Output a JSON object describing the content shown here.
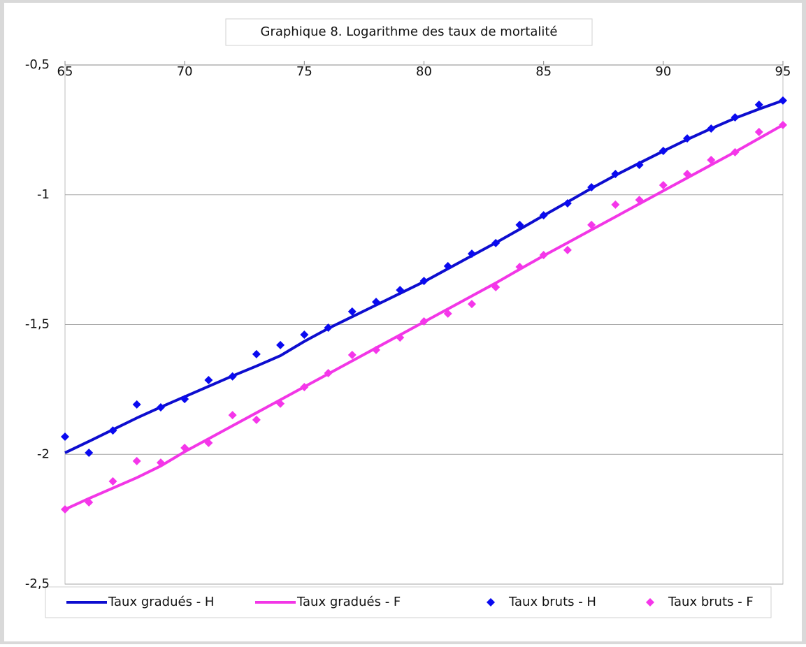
{
  "chart_data": {
    "type": "line",
    "title": "Graphique 8. Logarithme des taux de mortalité",
    "x": [
      65,
      66,
      67,
      68,
      69,
      70,
      71,
      72,
      73,
      74,
      75,
      76,
      77,
      78,
      79,
      80,
      81,
      82,
      83,
      84,
      85,
      86,
      87,
      88,
      89,
      90,
      91,
      92,
      93,
      94,
      95
    ],
    "xlim": [
      65,
      95
    ],
    "xticks": [
      65,
      70,
      75,
      80,
      85,
      90,
      95
    ],
    "ylim": [
      -2.5,
      -0.5
    ],
    "yticks": [
      {
        "value": -0.5,
        "label": "-0,5"
      },
      -1,
      {
        "value": -1.5,
        "label": "-1,5"
      },
      -2,
      {
        "value": -2.5,
        "label": "-2,5"
      }
    ],
    "grid": true,
    "legend": "bottom",
    "series": [
      {
        "name": "Taux gradués - H",
        "type": "line",
        "color": "#0d0dcf",
        "values": [
          -1.994,
          -1.95,
          -1.905,
          -1.86,
          -1.818,
          -1.778,
          -1.738,
          -1.698,
          -1.66,
          -1.62,
          -1.565,
          -1.515,
          -1.47,
          -1.425,
          -1.38,
          -1.335,
          -1.285,
          -1.235,
          -1.185,
          -1.133,
          -1.08,
          -1.028,
          -0.975,
          -0.925,
          -0.878,
          -0.832,
          -0.787,
          -0.745,
          -0.705,
          -0.67,
          -0.637
        ]
      },
      {
        "name": "Taux gradués - F",
        "type": "line",
        "color": "#f236e6",
        "values": [
          -2.212,
          -2.17,
          -2.13,
          -2.09,
          -2.045,
          -1.99,
          -1.94,
          -1.89,
          -1.84,
          -1.79,
          -1.74,
          -1.69,
          -1.64,
          -1.59,
          -1.54,
          -1.49,
          -1.44,
          -1.39,
          -1.34,
          -1.287,
          -1.235,
          -1.185,
          -1.135,
          -1.085,
          -1.035,
          -0.985,
          -0.935,
          -0.885,
          -0.835,
          -0.783,
          -0.731
        ]
      },
      {
        "name": "Taux bruts - H",
        "type": "scatter",
        "color": "#0a0af0",
        "values": [
          -1.932,
          -1.994,
          -1.908,
          -1.808,
          -1.819,
          -1.787,
          -1.714,
          -1.7,
          -1.614,
          -1.579,
          -1.539,
          -1.512,
          -1.45,
          -1.413,
          -1.367,
          -1.332,
          -1.275,
          -1.227,
          -1.186,
          -1.116,
          -1.079,
          -1.033,
          -0.971,
          -0.92,
          -0.885,
          -0.831,
          -0.783,
          -0.745,
          -0.702,
          -0.653,
          -0.637
        ]
      },
      {
        "name": "Taux bruts - F",
        "type": "scatter",
        "color": "#f536ea",
        "values": [
          -2.212,
          -2.185,
          -2.104,
          -2.026,
          -2.032,
          -1.975,
          -1.956,
          -1.849,
          -1.867,
          -1.805,
          -1.741,
          -1.687,
          -1.617,
          -1.598,
          -1.55,
          -1.488,
          -1.458,
          -1.421,
          -1.356,
          -1.278,
          -1.232,
          -1.213,
          -1.116,
          -1.038,
          -1.02,
          -0.963,
          -0.92,
          -0.866,
          -0.836,
          -0.758,
          -0.731
        ]
      }
    ]
  }
}
